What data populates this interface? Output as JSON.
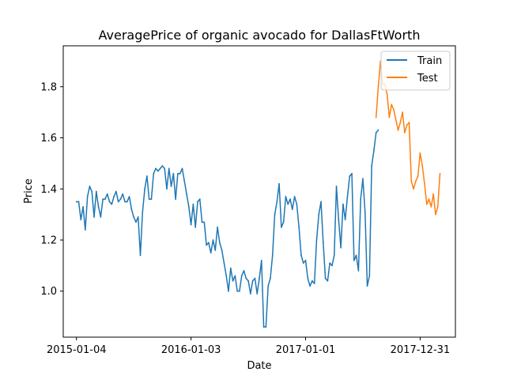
{
  "chart_data": {
    "type": "line",
    "title": "AveragePrice of organic avocado for DallasFtWorth",
    "xlabel": "Date",
    "ylabel": "Price",
    "x_type": "date",
    "xlim": [
      "2014-11-23",
      "2018-04-22"
    ],
    "ylim": [
      0.82,
      1.96
    ],
    "x_ticks": [
      {
        "date": "2015-01-04",
        "label": "2015-01-04"
      },
      {
        "date": "2016-01-03",
        "label": "2016-01-03"
      },
      {
        "date": "2017-01-01",
        "label": "2017-01-01"
      },
      {
        "date": "2017-12-31",
        "label": "2017-12-31"
      }
    ],
    "y_ticks": [
      {
        "value": 1.0,
        "label": "1.0"
      },
      {
        "value": 1.2,
        "label": "1.2"
      },
      {
        "value": 1.4,
        "label": "1.4"
      },
      {
        "value": 1.6,
        "label": "1.6"
      },
      {
        "value": 1.8,
        "label": "1.8"
      }
    ],
    "grid": false,
    "legend_position": "top-right",
    "series": [
      {
        "name": "Train",
        "color": "#1f77b4",
        "start_date": "2015-01-04",
        "interval_days": 7,
        "values": [
          1.35,
          1.35,
          1.28,
          1.33,
          1.24,
          1.37,
          1.41,
          1.39,
          1.29,
          1.39,
          1.33,
          1.29,
          1.36,
          1.36,
          1.38,
          1.35,
          1.34,
          1.37,
          1.39,
          1.35,
          1.36,
          1.38,
          1.35,
          1.35,
          1.37,
          1.32,
          1.29,
          1.27,
          1.29,
          1.14,
          1.31,
          1.4,
          1.45,
          1.36,
          1.36,
          1.46,
          1.48,
          1.47,
          1.48,
          1.49,
          1.48,
          1.4,
          1.48,
          1.41,
          1.46,
          1.36,
          1.46,
          1.46,
          1.48,
          1.43,
          1.38,
          1.33,
          1.26,
          1.34,
          1.25,
          1.35,
          1.36,
          1.27,
          1.27,
          1.18,
          1.19,
          1.15,
          1.2,
          1.16,
          1.25,
          1.19,
          1.16,
          1.11,
          1.06,
          1.0,
          1.09,
          1.04,
          1.06,
          1.0,
          1.0,
          1.06,
          1.08,
          1.05,
          1.04,
          0.99,
          1.04,
          1.05,
          0.99,
          1.05,
          1.12,
          0.86,
          0.86,
          1.02,
          1.05,
          1.14,
          1.3,
          1.35,
          1.42,
          1.25,
          1.27,
          1.37,
          1.34,
          1.36,
          1.32,
          1.37,
          1.34,
          1.25,
          1.14,
          1.11,
          1.12,
          1.05,
          1.02,
          1.04,
          1.03,
          1.2,
          1.3,
          1.35,
          1.19,
          1.05,
          1.04,
          1.11,
          1.1,
          1.14,
          1.41,
          1.28,
          1.17,
          1.34,
          1.28,
          1.37,
          1.45,
          1.46,
          1.12,
          1.14,
          1.08,
          1.36,
          1.44,
          1.31,
          1.02,
          1.06,
          1.49,
          1.55,
          1.62,
          1.63
        ]
      },
      {
        "name": "Test",
        "color": "#ff7f0e",
        "start_date": "2017-08-13",
        "interval_days": 7,
        "values": [
          1.68,
          1.8,
          1.9,
          1.81,
          1.81,
          1.77,
          1.68,
          1.73,
          1.71,
          1.67,
          1.63,
          1.66,
          1.7,
          1.62,
          1.65,
          1.66,
          1.43,
          1.4,
          1.43,
          1.45,
          1.54,
          1.49,
          1.42,
          1.34,
          1.36,
          1.33,
          1.38,
          1.3,
          1.33,
          1.46
        ]
      }
    ]
  }
}
